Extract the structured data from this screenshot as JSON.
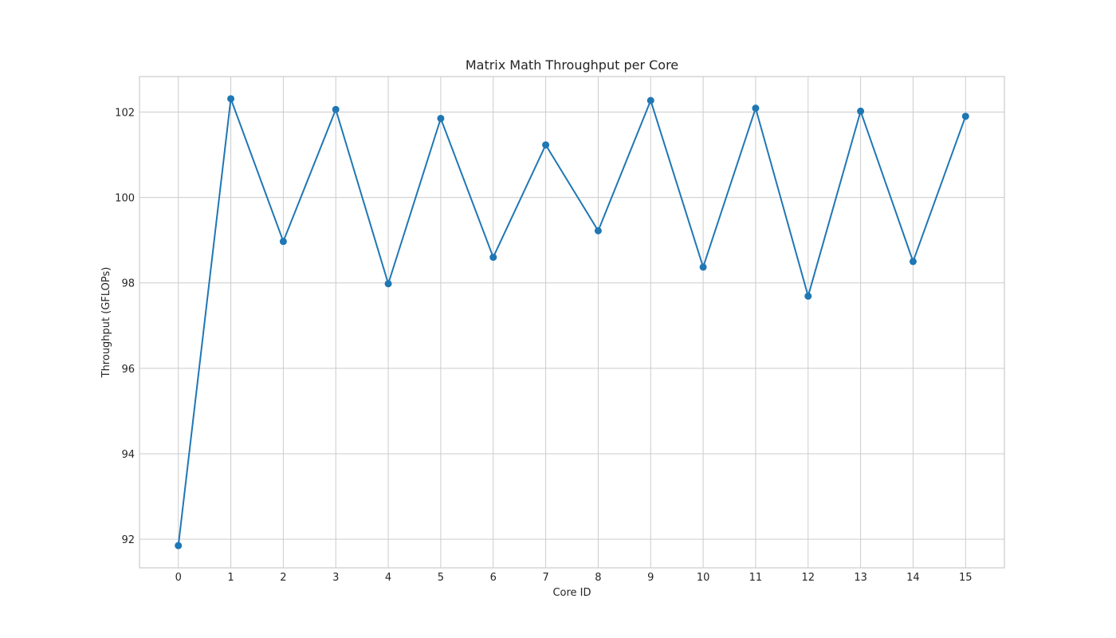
{
  "chart_data": {
    "type": "line",
    "title": "Matrix Math Throughput per Core",
    "xlabel": "Core ID",
    "ylabel": "Throughput (GFLOPs)",
    "x": [
      0,
      1,
      2,
      3,
      4,
      5,
      6,
      7,
      8,
      9,
      10,
      11,
      12,
      13,
      14,
      15
    ],
    "xticks": [
      "0",
      "1",
      "2",
      "3",
      "4",
      "5",
      "6",
      "7",
      "8",
      "9",
      "10",
      "11",
      "12",
      "13",
      "14",
      "15"
    ],
    "yticks": [
      92,
      94,
      96,
      98,
      100,
      102
    ],
    "xlim": [
      -0.74,
      15.74
    ],
    "ylim": [
      91.33,
      102.83
    ],
    "grid": true,
    "series": [
      {
        "color": "#1f77b4",
        "values": [
          91.85,
          102.31,
          98.97,
          102.06,
          97.98,
          101.85,
          98.6,
          101.23,
          99.22,
          102.27,
          98.37,
          102.09,
          97.69,
          102.02,
          98.5,
          101.9
        ]
      }
    ]
  }
}
